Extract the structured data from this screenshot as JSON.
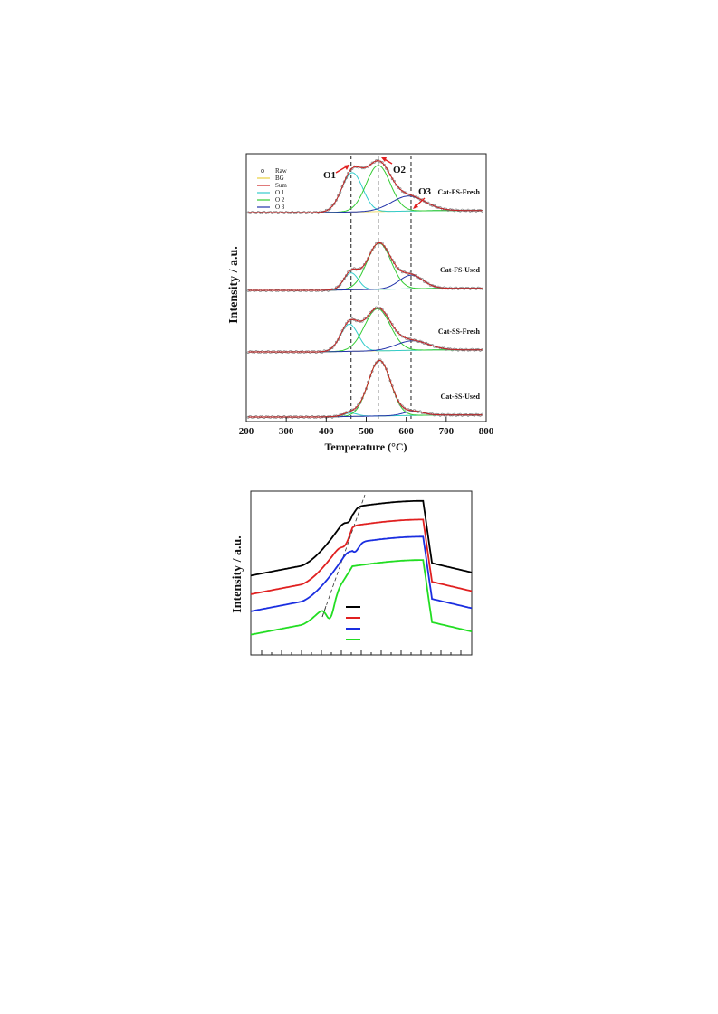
{
  "chart_data": [
    {
      "type": "line",
      "title": "",
      "xlabel": "Temperature (°C)",
      "ylabel": "Intensity / a.u.",
      "xlim": [
        200,
        800
      ],
      "x_ticks": [
        "200",
        "300",
        "400",
        "500",
        "600",
        "700",
        "800"
      ],
      "legend": [
        "Raw",
        "BG",
        "Sum",
        "O 1",
        "O 2",
        "O 3"
      ],
      "legend_position": "top-left",
      "colors": {
        "Raw": "#777777",
        "BG": "#e8d040",
        "Sum": "#cc2222",
        "O 1": "#33cccc",
        "O 2": "#33cc33",
        "O 3": "#2233aa"
      },
      "reference_lines_x": [
        462,
        530,
        612
      ],
      "annotations": [
        "O1",
        "O2",
        "O3"
      ],
      "series": [
        {
          "name": "Cat-FS-Fresh",
          "peaks": [
            {
              "label": "O 1",
              "center": 465,
              "height": 0.58,
              "width": 26
            },
            {
              "label": "O 2",
              "center": 530,
              "height": 0.68,
              "width": 30
            },
            {
              "label": "O 3",
              "center": 605,
              "height": 0.22,
              "width": 42
            }
          ]
        },
        {
          "name": "Cat-FS-Used",
          "peaks": [
            {
              "label": "O 1",
              "center": 462,
              "height": 0.25,
              "width": 18
            },
            {
              "label": "O 2",
              "center": 532,
              "height": 0.68,
              "width": 30
            },
            {
              "label": "O 3",
              "center": 612,
              "height": 0.2,
              "width": 30
            }
          ]
        },
        {
          "name": "Cat-SS-Fresh",
          "peaks": [
            {
              "label": "O 1",
              "center": 458,
              "height": 0.4,
              "width": 22
            },
            {
              "label": "O 2",
              "center": 528,
              "height": 0.62,
              "width": 32
            },
            {
              "label": "O 3",
              "center": 615,
              "height": 0.14,
              "width": 40
            }
          ]
        },
        {
          "name": "Cat-SS-Used",
          "peaks": [
            {
              "label": "O 1",
              "center": 460,
              "height": 0.05,
              "width": 18
            },
            {
              "label": "O 2",
              "center": 533,
              "height": 0.82,
              "width": 28
            },
            {
              "label": "O 3",
              "center": 618,
              "height": 0.06,
              "width": 25
            }
          ]
        }
      ]
    },
    {
      "type": "line",
      "title": "",
      "xlabel": "",
      "ylabel": "Intensity / a.u.",
      "xlim": [
        0,
        100
      ],
      "legend_position": "bottom-center",
      "series": [
        {
          "color": "#000000",
          "offset": 0.0,
          "dip_x": 45,
          "dip_depth": 0.06
        },
        {
          "color": "#e02020",
          "offset": 0.07,
          "dip_x": 43,
          "dip_depth": 0.05
        },
        {
          "color": "#1a2ee0",
          "offset": 0.13,
          "dip_x": 47,
          "dip_depth": 0.06
        },
        {
          "color": "#22dd22",
          "offset": 0.21,
          "dip_x": 36,
          "dip_depth": 0.12
        }
      ]
    }
  ]
}
